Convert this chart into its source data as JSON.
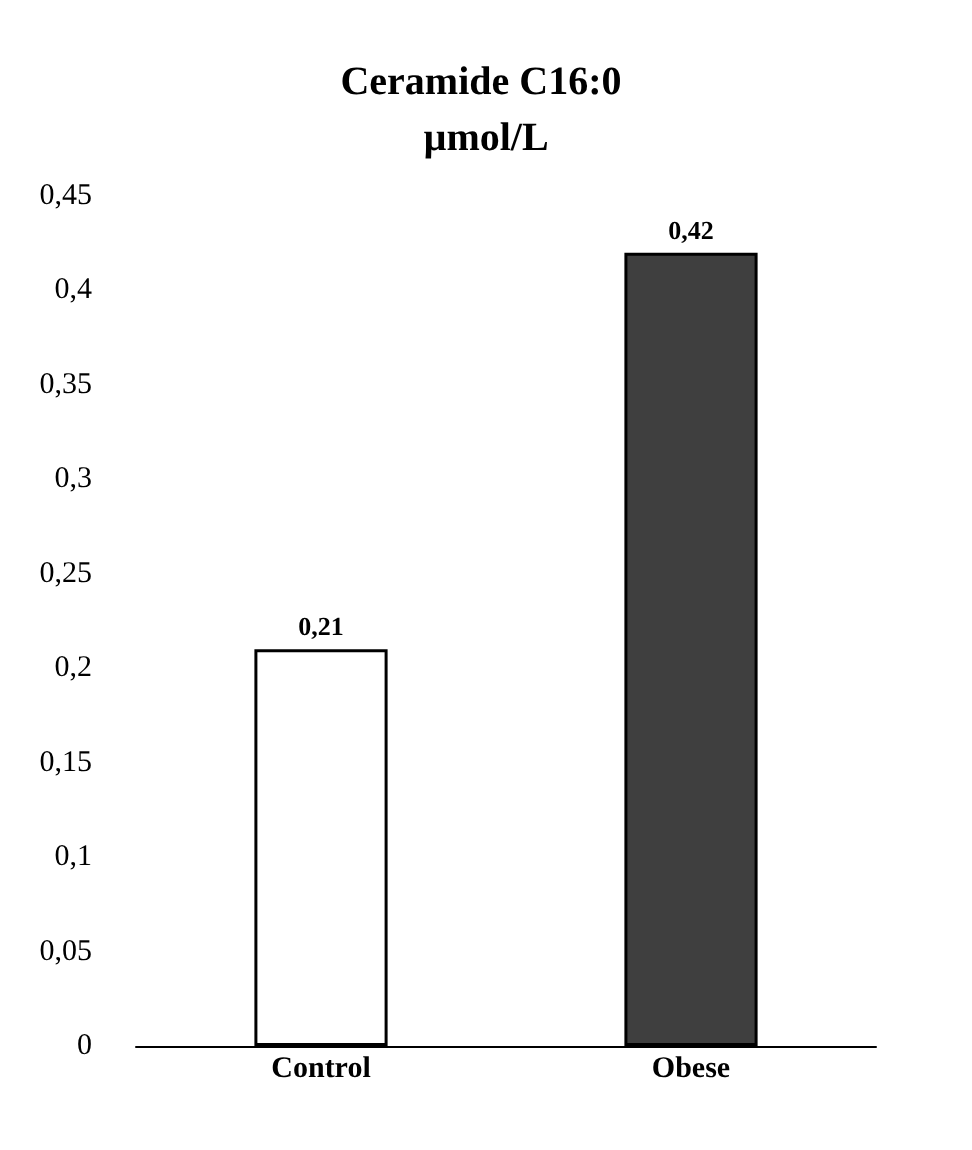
{
  "chart_data": {
    "type": "bar",
    "title": "Ceramide C16:0 µmol/L",
    "categories": [
      "Control",
      "Obese"
    ],
    "values": [
      0.21,
      0.42
    ],
    "colors": [
      "#ffffff",
      "#3f3f3f"
    ],
    "value_labels": [
      "0,21",
      "0,42"
    ],
    "ylim": [
      0,
      0.45
    ],
    "yticks": [
      {
        "value": 0,
        "label": "0"
      },
      {
        "value": 0.05,
        "label": "0,05"
      },
      {
        "value": 0.1,
        "label": "0,1"
      },
      {
        "value": 0.15,
        "label": "0,15"
      },
      {
        "value": 0.2,
        "label": "0,2"
      },
      {
        "value": 0.25,
        "label": "0,25"
      },
      {
        "value": 0.3,
        "label": "0,3"
      },
      {
        "value": 0.35,
        "label": "0,35"
      },
      {
        "value": 0.4,
        "label": "0,4"
      },
      {
        "value": 0.45,
        "label": "0,45"
      }
    ],
    "grid": false
  }
}
